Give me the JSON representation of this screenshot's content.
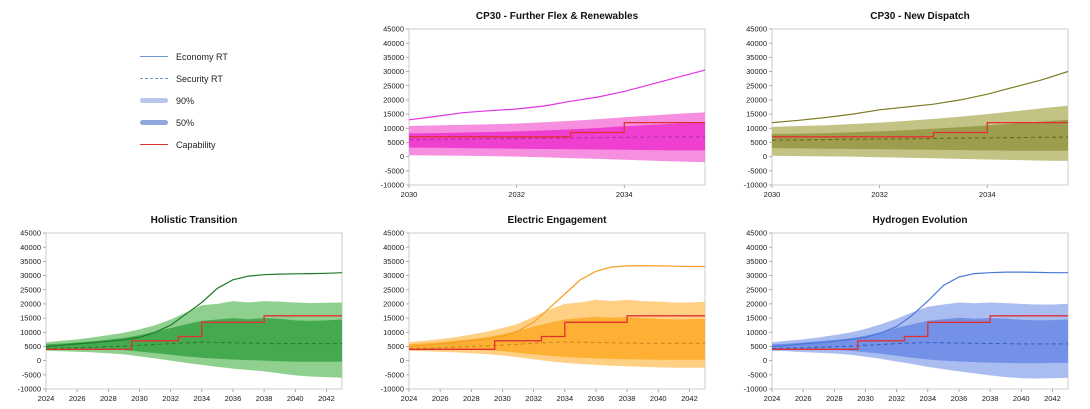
{
  "figure": {
    "background": "#ffffff"
  },
  "legend": {
    "items": [
      {
        "label": "Economy RT",
        "type": "line-solid",
        "color": "#6e94cf"
      },
      {
        "label": "Security RT",
        "type": "line-dashed",
        "color": "#6e94cf"
      },
      {
        "label": "90%",
        "type": "band",
        "color": "#b7c6ea"
      },
      {
        "label": "50%",
        "type": "band",
        "color": "#8fa9dd"
      },
      {
        "label": "Capability",
        "type": "line-solid",
        "color": "#e03131"
      }
    ]
  },
  "chart_data": [
    {
      "type": "area",
      "title": "CP30 - Further Flex & Renewables",
      "colors": {
        "line": "#e332e3",
        "band90": "#f78fe0",
        "band50": "#ef3fd1",
        "security": "#b52bb5",
        "capability": "#e03131"
      },
      "xlim": [
        2030,
        2035.5
      ],
      "xticks": [
        2030,
        2032,
        2034
      ],
      "ylim": [
        -10000,
        45000
      ],
      "ytick_step": 5000,
      "x": [
        2030,
        2030.5,
        2031,
        2031.5,
        2032,
        2032.5,
        2033,
        2033.5,
        2034,
        2034.5,
        2035,
        2035.5
      ],
      "economy": [
        13000,
        14200,
        15500,
        16200,
        16800,
        17800,
        19500,
        21000,
        23000,
        25500,
        28000,
        30500
      ],
      "security": [
        6000,
        6100,
        6200,
        6300,
        6400,
        6500,
        6600,
        6700,
        6800,
        6900,
        7000,
        7000
      ],
      "band90_lo": [
        500,
        400,
        300,
        200,
        0,
        -200,
        -500,
        -800,
        -1100,
        -1400,
        -1700,
        -2000
      ],
      "band90_hi": [
        10800,
        11000,
        11200,
        11400,
        11700,
        12100,
        12600,
        13200,
        13900,
        14500,
        15100,
        15600
      ],
      "band50_lo": [
        3200,
        3100,
        3000,
        2900,
        2800,
        2700,
        2600,
        2500,
        2400,
        2300,
        2200,
        2200
      ],
      "band50_hi": [
        8200,
        8300,
        8500,
        8700,
        8900,
        9200,
        9600,
        10100,
        10700,
        11200,
        11700,
        12100
      ],
      "capability_steps": [
        [
          2030,
          7000
        ],
        [
          2033,
          8500
        ],
        [
          2034,
          12000
        ]
      ]
    },
    {
      "type": "area",
      "title": "CP30 - New Dispatch",
      "colors": {
        "line": "#7d7d21",
        "band90": "#c3c386",
        "band50": "#9d9d4e",
        "security": "#6b6b1a",
        "capability": "#e03131"
      },
      "xlim": [
        2030,
        2035.5
      ],
      "xticks": [
        2030,
        2032,
        2034
      ],
      "ylim": [
        -10000,
        45000
      ],
      "ytick_step": 5000,
      "x": [
        2030,
        2030.5,
        2031,
        2031.5,
        2032,
        2032.5,
        2033,
        2033.5,
        2034,
        2034.5,
        2035,
        2035.5
      ],
      "economy": [
        12000,
        12800,
        13800,
        15000,
        16500,
        17500,
        18500,
        20000,
        22000,
        24500,
        27000,
        30000
      ],
      "security": [
        5800,
        5900,
        6000,
        6100,
        6200,
        6300,
        6400,
        6500,
        6600,
        6700,
        6800,
        6900
      ],
      "band90_lo": [
        300,
        200,
        100,
        0,
        -200,
        -400,
        -600,
        -800,
        -1000,
        -1200,
        -1400,
        -1500
      ],
      "band90_hi": [
        10500,
        10800,
        11100,
        11500,
        12000,
        12600,
        13300,
        14100,
        15000,
        16000,
        17000,
        18000
      ],
      "band50_lo": [
        3000,
        2900,
        2800,
        2700,
        2600,
        2500,
        2400,
        2300,
        2200,
        2100,
        2100,
        2100
      ],
      "band50_hi": [
        8000,
        8100,
        8300,
        8600,
        8900,
        9300,
        9800,
        10400,
        11000,
        11700,
        12400,
        13000
      ],
      "capability_steps": [
        [
          2030,
          7000
        ],
        [
          2033,
          8500
        ],
        [
          2034,
          12000
        ]
      ]
    },
    {
      "type": "area",
      "title": "Holistic Transition",
      "colors": {
        "line": "#1f7a2d",
        "band90": "#8fd08f",
        "band50": "#44a94f",
        "security": "#2a7d36",
        "capability": "#e03131"
      },
      "xlim": [
        2024,
        2043
      ],
      "xticks": [
        2024,
        2026,
        2028,
        2030,
        2032,
        2034,
        2036,
        2038,
        2040,
        2042
      ],
      "ylim": [
        -10000,
        45000
      ],
      "ytick_step": 5000,
      "x": [
        2024,
        2025,
        2026,
        2027,
        2028,
        2029,
        2030,
        2031,
        2032,
        2033,
        2034,
        2035,
        2036,
        2037,
        2038,
        2039,
        2040,
        2041,
        2042,
        2043
      ],
      "economy": [
        5000,
        5400,
        5900,
        6300,
        6800,
        7300,
        8200,
        10000,
        12500,
        16500,
        20500,
        25500,
        28500,
        29800,
        30300,
        30500,
        30600,
        30700,
        30800,
        31000
      ],
      "security": [
        4300,
        4400,
        4600,
        4700,
        4900,
        5100,
        5400,
        5700,
        6000,
        6300,
        6500,
        6400,
        6300,
        6200,
        6100,
        6000,
        6000,
        6000,
        6000,
        6000
      ],
      "band90_lo": [
        3500,
        3300,
        3100,
        2900,
        2600,
        2200,
        1500,
        800,
        0,
        -800,
        -1500,
        -2200,
        -2800,
        -3300,
        -3800,
        -4500,
        -5200,
        -5600,
        -5800,
        -6000
      ],
      "band90_hi": [
        6500,
        7000,
        7500,
        8200,
        9000,
        9800,
        11000,
        12500,
        14500,
        17000,
        19500,
        20000,
        21000,
        20500,
        21000,
        20800,
        20500,
        20300,
        20400,
        20500
      ],
      "band50_lo": [
        4200,
        4100,
        4100,
        4000,
        3900,
        3700,
        3200,
        2700,
        2100,
        1500,
        1000,
        700,
        400,
        200,
        0,
        -200,
        -400,
        -400,
        -400,
        -400
      ],
      "band50_hi": [
        5800,
        6000,
        6400,
        6800,
        7400,
        8000,
        9000,
        10200,
        11500,
        12800,
        14000,
        14500,
        15000,
        14600,
        15000,
        14700,
        14200,
        14000,
        14200,
        14500
      ],
      "capability_steps": [
        [
          2024,
          4000
        ],
        [
          2029.5,
          7000
        ],
        [
          2032.5,
          8500
        ],
        [
          2034,
          13500
        ],
        [
          2038,
          15800
        ]
      ]
    },
    {
      "type": "area",
      "title": "Electric Engagement",
      "colors": {
        "line": "#f59f23",
        "band90": "#ffd083",
        "band50": "#fdb033",
        "security": "#cc8a1e",
        "capability": "#e03131"
      },
      "xlim": [
        2024,
        2043
      ],
      "xticks": [
        2024,
        2026,
        2028,
        2030,
        2032,
        2034,
        2036,
        2038,
        2040,
        2042
      ],
      "ylim": [
        -10000,
        45000
      ],
      "ytick_step": 5000,
      "x": [
        2024,
        2025,
        2026,
        2027,
        2028,
        2029,
        2030,
        2031,
        2032,
        2033,
        2034,
        2035,
        2036,
        2037,
        2038,
        2039,
        2040,
        2041,
        2042,
        2043
      ],
      "economy": [
        5000,
        5400,
        5900,
        6400,
        7000,
        7600,
        8500,
        10500,
        13500,
        18500,
        23500,
        28500,
        31500,
        33000,
        33400,
        33500,
        33400,
        33300,
        33200,
        33200
      ],
      "security": [
        4300,
        4400,
        4600,
        4800,
        5000,
        5200,
        5500,
        5800,
        6100,
        6400,
        6600,
        6500,
        6400,
        6300,
        6200,
        6100,
        6100,
        6100,
        6100,
        6100
      ],
      "band90_lo": [
        3500,
        3300,
        3100,
        2900,
        2600,
        2300,
        1800,
        1200,
        500,
        -200,
        -800,
        -1200,
        -1500,
        -1800,
        -2000,
        -2200,
        -2400,
        -2500,
        -2500,
        -2500
      ],
      "band90_hi": [
        6500,
        7000,
        7600,
        8300,
        9200,
        10200,
        11500,
        13000,
        15500,
        18000,
        20000,
        20500,
        21500,
        21000,
        21500,
        21000,
        20800,
        20500,
        20500,
        20800
      ],
      "band50_lo": [
        4200,
        4100,
        4000,
        4000,
        3900,
        3700,
        3300,
        2800,
        2200,
        1700,
        1300,
        1000,
        800,
        600,
        500,
        400,
        300,
        300,
        300,
        300
      ],
      "band50_hi": [
        5800,
        6100,
        6500,
        7000,
        7600,
        8300,
        9300,
        10500,
        12000,
        13300,
        14500,
        15000,
        15500,
        15100,
        15400,
        15000,
        14700,
        14500,
        14600,
        14800
      ],
      "capability_steps": [
        [
          2024,
          4000
        ],
        [
          2029.5,
          7000
        ],
        [
          2032.5,
          8500
        ],
        [
          2034,
          13500
        ],
        [
          2038,
          15800
        ]
      ]
    },
    {
      "type": "area",
      "title": "Hydrogen Evolution",
      "colors": {
        "line": "#4a78d9",
        "band90": "#a9bdf0",
        "band50": "#7391e6",
        "security": "#3a62c4",
        "capability": "#e03131"
      },
      "xlim": [
        2024,
        2043
      ],
      "xticks": [
        2024,
        2026,
        2028,
        2030,
        2032,
        2034,
        2036,
        2038,
        2040,
        2042
      ],
      "ylim": [
        -10000,
        45000
      ],
      "ytick_step": 5000,
      "x": [
        2024,
        2025,
        2026,
        2027,
        2028,
        2029,
        2030,
        2031,
        2032,
        2033,
        2034,
        2035,
        2036,
        2037,
        2038,
        2039,
        2040,
        2041,
        2042,
        2043
      ],
      "economy": [
        5000,
        5400,
        5900,
        6300,
        6800,
        7400,
        8200,
        9800,
        12000,
        16000,
        21000,
        26500,
        29500,
        30700,
        31000,
        31200,
        31200,
        31100,
        31000,
        31000
      ],
      "security": [
        4300,
        4400,
        4500,
        4700,
        4900,
        5100,
        5400,
        5700,
        6000,
        6200,
        6400,
        6300,
        6200,
        6100,
        6000,
        6000,
        5900,
        5900,
        5900,
        5900
      ],
      "band90_lo": [
        3500,
        3300,
        3000,
        2800,
        2500,
        2100,
        1400,
        600,
        -300,
        -1200,
        -2200,
        -3000,
        -3800,
        -4500,
        -5200,
        -5800,
        -6200,
        -6300,
        -6200,
        -6000
      ],
      "band90_hi": [
        6500,
        7000,
        7500,
        8200,
        9000,
        9900,
        11200,
        12800,
        14800,
        17000,
        19000,
        19800,
        20500,
        20200,
        20500,
        20300,
        20000,
        19800,
        19800,
        20000
      ],
      "band50_lo": [
        4200,
        4100,
        4000,
        3900,
        3800,
        3500,
        3000,
        2400,
        1700,
        1000,
        400,
        0,
        -300,
        -500,
        -700,
        -800,
        -900,
        -900,
        -800,
        -800
      ],
      "band50_hi": [
        5800,
        6000,
        6400,
        6800,
        7300,
        7900,
        8800,
        10000,
        11500,
        12800,
        14000,
        14600,
        15100,
        14800,
        15000,
        14800,
        14400,
        14200,
        14300,
        14500
      ],
      "capability_steps": [
        [
          2024,
          4000
        ],
        [
          2029.5,
          7000
        ],
        [
          2032.5,
          8500
        ],
        [
          2034,
          13500
        ],
        [
          2038,
          15800
        ]
      ]
    }
  ]
}
